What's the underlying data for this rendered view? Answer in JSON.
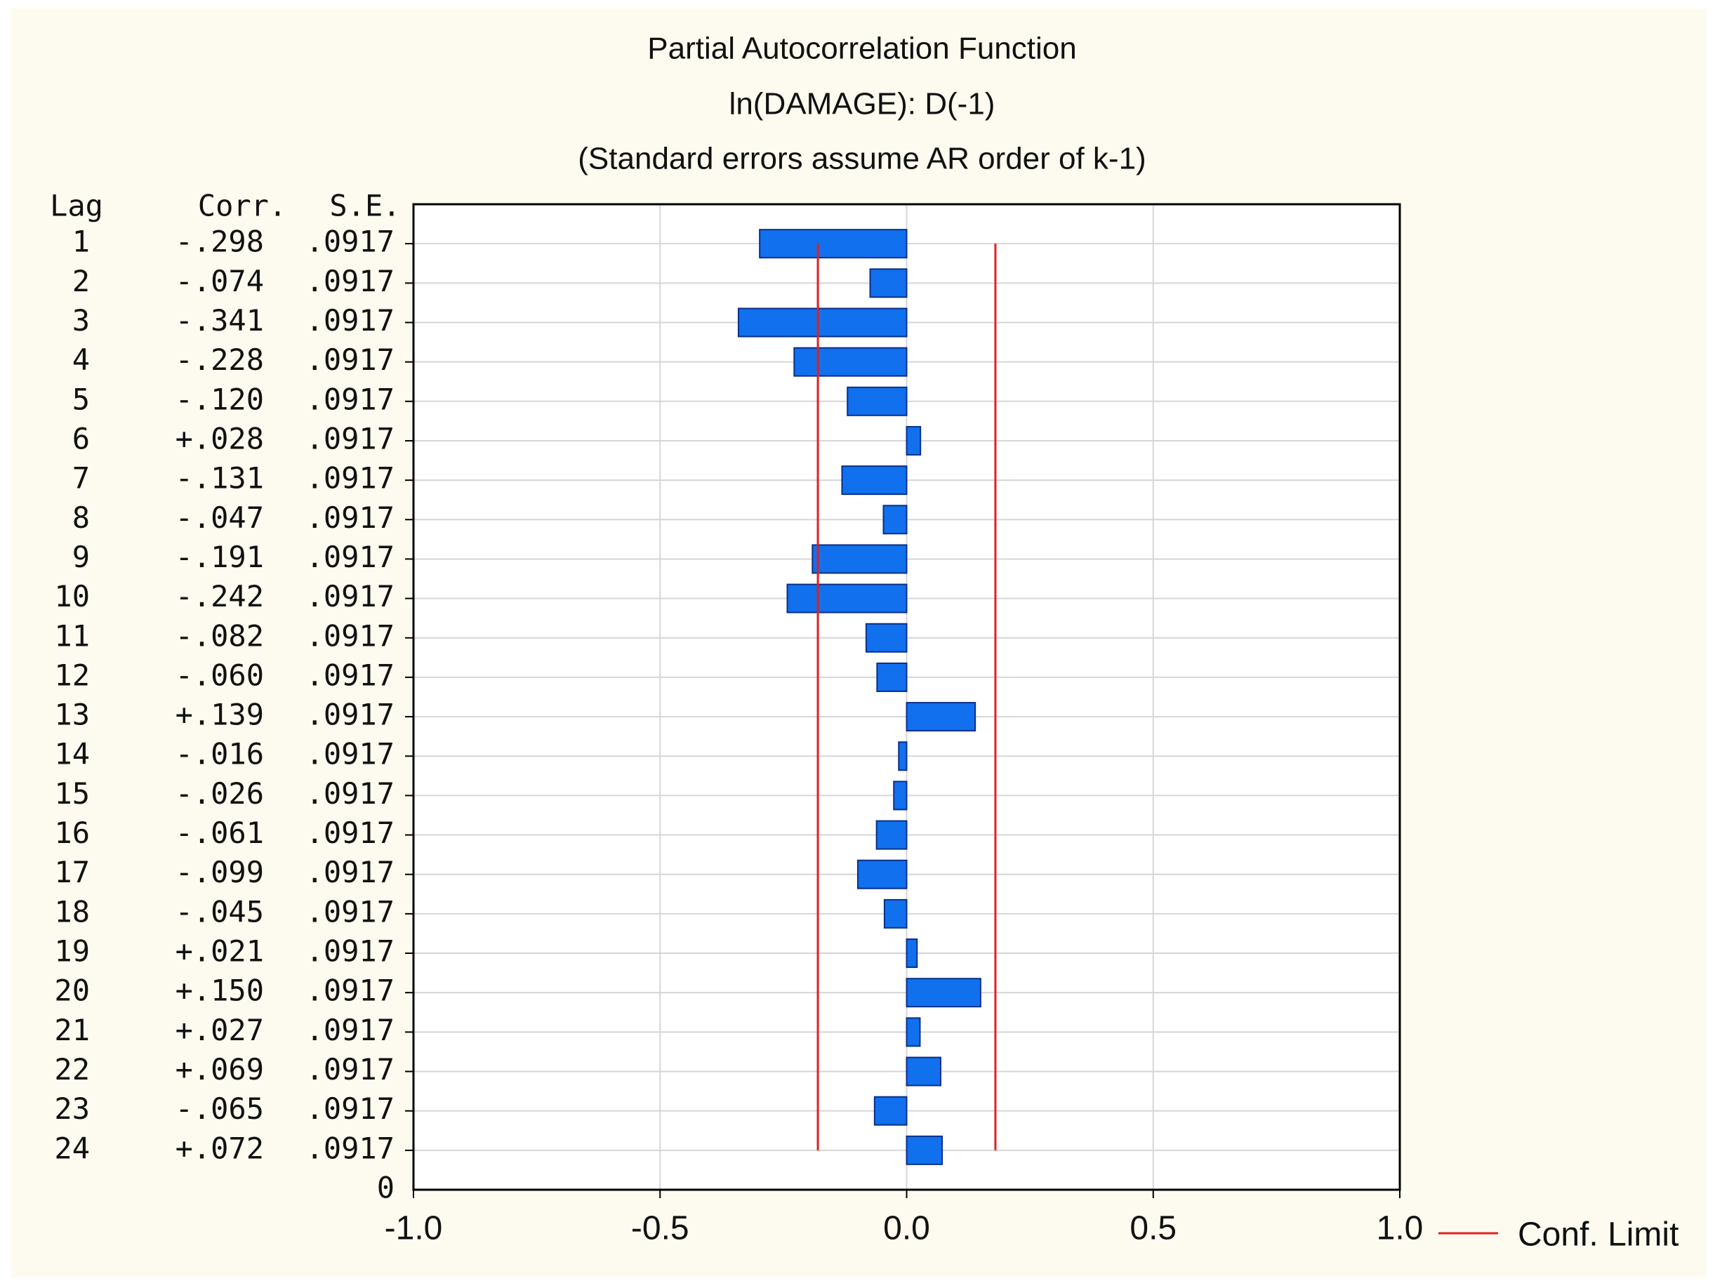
{
  "chart_data": {
    "type": "bar",
    "orientation": "horizontal",
    "title": "Partial Autocorrelation Function",
    "subtitle": "ln(DAMAGE): D(-1)",
    "note": "(Standard errors assume AR order of k-1)",
    "columns": [
      "Lag",
      "Corr.",
      "S.E."
    ],
    "categories": [
      "1",
      "2",
      "3",
      "4",
      "5",
      "6",
      "7",
      "8",
      "9",
      "10",
      "11",
      "12",
      "13",
      "14",
      "15",
      "16",
      "17",
      "18",
      "19",
      "20",
      "21",
      "22",
      "23",
      "24"
    ],
    "values": [
      -0.298,
      -0.074,
      -0.341,
      -0.228,
      -0.12,
      0.028,
      -0.131,
      -0.047,
      -0.191,
      -0.242,
      -0.082,
      -0.06,
      0.139,
      -0.016,
      -0.026,
      -0.061,
      -0.099,
      -0.045,
      0.021,
      0.15,
      0.027,
      0.069,
      -0.065,
      0.072
    ],
    "value_labels": [
      "-.298",
      "-.074",
      "-.341",
      "-.228",
      "-.120",
      "+.028",
      "-.131",
      "-.047",
      "-.191",
      "-.242",
      "-.082",
      "-.060",
      "+.139",
      "-.016",
      "-.026",
      "-.061",
      "-.099",
      "-.045",
      "+.021",
      "+.150",
      "+.027",
      "+.069",
      "-.065",
      "+.072"
    ],
    "se": [
      0.0917,
      0.0917,
      0.0917,
      0.0917,
      0.0917,
      0.0917,
      0.0917,
      0.0917,
      0.0917,
      0.0917,
      0.0917,
      0.0917,
      0.0917,
      0.0917,
      0.0917,
      0.0917,
      0.0917,
      0.0917,
      0.0917,
      0.0917,
      0.0917,
      0.0917,
      0.0917,
      0.0917
    ],
    "se_labels": [
      ".0917",
      ".0917",
      ".0917",
      ".0917",
      ".0917",
      ".0917",
      ".0917",
      ".0917",
      ".0917",
      ".0917",
      ".0917",
      ".0917",
      ".0917",
      ".0917",
      ".0917",
      ".0917",
      ".0917",
      ".0917",
      ".0917",
      ".0917",
      ".0917",
      ".0917",
      ".0917",
      ".0917"
    ],
    "bottom_label": "0",
    "color": "#1170ee",
    "conf_limit": {
      "name": "Conf. Limit",
      "color": "#e02020",
      "values": [
        -0.18,
        0.18
      ]
    },
    "xlim": [
      -1,
      1
    ],
    "xticks": [
      {
        "value": -1,
        "label": "-1.0"
      },
      {
        "value": -0.5,
        "label": "-0.5"
      },
      {
        "value": 0,
        "label": "0.0"
      },
      {
        "value": 0.5,
        "label": "0.5"
      },
      {
        "value": 1,
        "label": "1.0"
      }
    ],
    "grid": true
  }
}
